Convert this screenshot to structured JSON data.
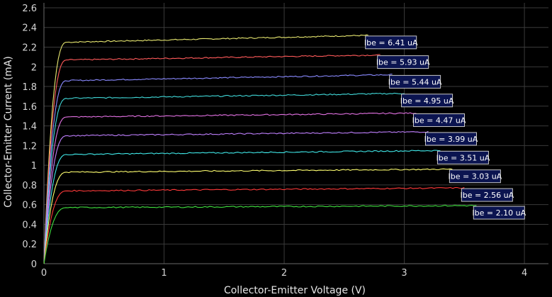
{
  "chart_data": {
    "type": "line",
    "xlabel": "Collector-Emitter Voltage (V)",
    "ylabel": "Collector-Emitter Current (mA)",
    "xlim": [
      0,
      4.2
    ],
    "ylim": [
      0,
      2.65
    ],
    "x_ticks": [
      "0",
      "1",
      "2",
      "3",
      "4"
    ],
    "y_ticks": [
      "0",
      "0.2",
      "0.4",
      "0.6",
      "0.8",
      "1",
      "1.2",
      "1.4",
      "1.6",
      "1.8",
      "2",
      "2.2",
      "2.4",
      "2.6"
    ],
    "grid": true,
    "series": [
      {
        "name": "Ibe = 6.41 uA",
        "color": "#e8e870",
        "sat_current": 2.25,
        "end_current": 2.32,
        "end_voltage": 2.7
      },
      {
        "name": "Ibe = 5.93 uA",
        "color": "#ff5a5a",
        "sat_current": 2.07,
        "end_current": 2.12,
        "end_voltage": 2.8
      },
      {
        "name": "Ibe = 5.44 uA",
        "color": "#8a8aff",
        "sat_current": 1.86,
        "end_current": 1.92,
        "end_voltage": 2.9
      },
      {
        "name": "Ibe = 4.95 uA",
        "color": "#40d8d8",
        "sat_current": 1.68,
        "end_current": 1.73,
        "end_voltage": 3.0
      },
      {
        "name": "Ibe = 4.47 uA",
        "color": "#e070e0",
        "sat_current": 1.49,
        "end_current": 1.53,
        "end_voltage": 3.1
      },
      {
        "name": "Ibe = 3.99 uA",
        "color": "#c080ff",
        "sat_current": 1.3,
        "end_current": 1.34,
        "end_voltage": 3.2
      },
      {
        "name": "Ibe = 3.51 uA",
        "color": "#40e8e8",
        "sat_current": 1.11,
        "end_current": 1.15,
        "end_voltage": 3.3
      },
      {
        "name": "Ibe = 3.03 uA",
        "color": "#ffff70",
        "sat_current": 0.93,
        "end_current": 0.96,
        "end_voltage": 3.4
      },
      {
        "name": "Ibe = 2.56 uA",
        "color": "#ff3a3a",
        "sat_current": 0.74,
        "end_current": 0.77,
        "end_voltage": 3.5
      },
      {
        "name": "Ibe = 2.10 uA",
        "color": "#40e040",
        "sat_current": 0.57,
        "end_current": 0.59,
        "end_voltage": 3.6
      }
    ]
  }
}
